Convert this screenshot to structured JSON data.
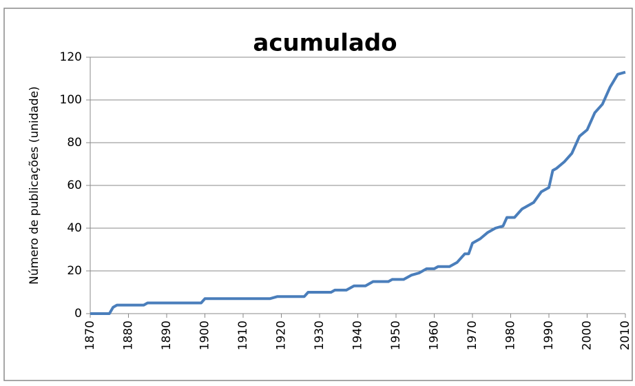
{
  "chart_data": {
    "type": "line",
    "title": "acumulado",
    "ylabel": "Número de publicações (unidade)",
    "x": [
      1870,
      1875,
      1876,
      1877,
      1884,
      1885,
      1899,
      1900,
      1917,
      1919,
      1926,
      1927,
      1933,
      1934,
      1937,
      1939,
      1942,
      1944,
      1948,
      1949,
      1952,
      1954,
      1956,
      1958,
      1960,
      1961,
      1964,
      1966,
      1968,
      1969,
      1970,
      1972,
      1974,
      1976,
      1978,
      1979,
      1981,
      1983,
      1985,
      1986,
      1988,
      1990,
      1991,
      1992,
      1994,
      1996,
      1998,
      2000,
      2002,
      2004,
      2006,
      2008,
      2010
    ],
    "values": [
      0,
      0,
      3,
      4,
      4,
      5,
      5,
      7,
      7,
      8,
      8,
      10,
      10,
      11,
      11,
      13,
      13,
      15,
      15,
      16,
      16,
      18,
      19,
      21,
      21,
      22,
      22,
      24,
      28,
      28,
      33,
      35,
      38,
      40,
      41,
      45,
      45,
      49,
      51,
      52,
      57,
      59,
      67,
      68,
      71,
      75,
      83,
      86,
      94,
      98,
      106,
      112,
      113
    ],
    "color": "#4a7ebb",
    "xlim": [
      1870,
      2010
    ],
    "xticks": [
      1870,
      1880,
      1890,
      1900,
      1910,
      1920,
      1930,
      1940,
      1950,
      1960,
      1970,
      1980,
      1990,
      2000,
      2010
    ],
    "ylim": [
      0,
      120
    ],
    "yticks": [
      0,
      20,
      40,
      60,
      80,
      100,
      120
    ],
    "grid": true
  }
}
